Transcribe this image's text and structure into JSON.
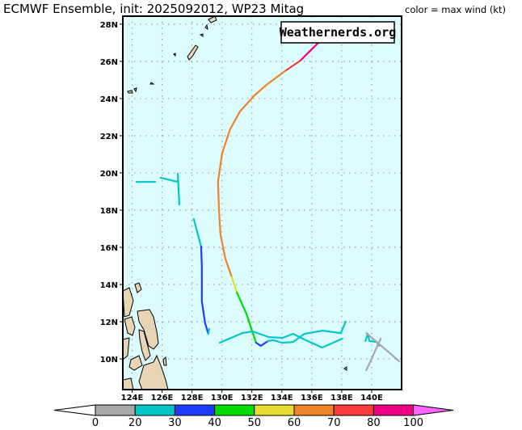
{
  "header": {
    "title": "ECMWF Ensemble, init: 2025092012, WP23 Mitag",
    "legend_note": "color = max wind (kt)"
  },
  "watermark": "Weathernerds.org",
  "map": {
    "lon_range": [
      123.38,
      142.0
    ],
    "lat_range": [
      8.35,
      28.43
    ],
    "lat_ticks": [
      {
        "v": 10,
        "label": "10N"
      },
      {
        "v": 12,
        "label": "12N"
      },
      {
        "v": 14,
        "label": "14N"
      },
      {
        "v": 16,
        "label": "16N"
      },
      {
        "v": 18,
        "label": "18N"
      },
      {
        "v": 20,
        "label": "20N"
      },
      {
        "v": 22,
        "label": "22N"
      },
      {
        "v": 24,
        "label": "24N"
      },
      {
        "v": 26,
        "label": "26N"
      },
      {
        "v": 28,
        "label": "28N"
      }
    ],
    "lon_ticks": [
      {
        "v": 124,
        "label": "124E"
      },
      {
        "v": 126,
        "label": "126E"
      },
      {
        "v": 128,
        "label": "128E"
      },
      {
        "v": 130,
        "label": "130E"
      },
      {
        "v": 132,
        "label": "132E"
      },
      {
        "v": 134,
        "label": "134E"
      },
      {
        "v": 136,
        "label": "136E"
      },
      {
        "v": 138,
        "label": "138E"
      },
      {
        "v": 140,
        "label": "140E"
      }
    ],
    "ocean_color": "#dcfcff",
    "land_color": "#e8d5b5"
  },
  "colorbar": {
    "bins": [
      {
        "from": 0,
        "to": 20,
        "color": "#a8a8a8"
      },
      {
        "from": 20,
        "to": 30,
        "color": "#00c8c8"
      },
      {
        "from": 30,
        "to": 40,
        "color": "#1e3cff"
      },
      {
        "from": 40,
        "to": 50,
        "color": "#00dc00"
      },
      {
        "from": 50,
        "to": 60,
        "color": "#e6dc32"
      },
      {
        "from": 60,
        "to": 70,
        "color": "#f08228"
      },
      {
        "from": 70,
        "to": 80,
        "color": "#fa3c3c"
      },
      {
        "from": 80,
        "to": 100,
        "color": "#f00082"
      }
    ],
    "over_color": "#ff64ff",
    "under_color": "#ffffff",
    "labels": [
      "0",
      "20",
      "30",
      "40",
      "50",
      "60",
      "70",
      "80",
      "100"
    ]
  },
  "tracks": [
    {
      "wind": 85,
      "points": [
        [
          136.7,
          27.2
        ],
        [
          135.94,
          26.61
        ],
        [
          135.24,
          26.04
        ]
      ]
    },
    {
      "wind": 75,
      "points": [
        [
          135.24,
          26.04
        ],
        [
          134.22,
          25.48
        ]
      ]
    },
    {
      "wind": 65,
      "points": [
        [
          134.22,
          25.48
        ],
        [
          132.98,
          24.74
        ],
        [
          132.17,
          24.17
        ],
        [
          131.2,
          23.3
        ],
        [
          130.55,
          22.35
        ],
        [
          130.01,
          21.04
        ],
        [
          129.74,
          19.52
        ],
        [
          129.8,
          18.0
        ],
        [
          129.9,
          16.7
        ],
        [
          130.23,
          15.39
        ],
        [
          130.66,
          14.39
        ]
      ]
    },
    {
      "wind": 55,
      "points": [
        [
          130.66,
          14.39
        ],
        [
          131.0,
          13.57
        ]
      ]
    },
    {
      "wind": 45,
      "points": [
        [
          131.0,
          13.57
        ],
        [
          131.63,
          12.43
        ],
        [
          132.28,
          10.87
        ]
      ]
    },
    {
      "wind": 35,
      "points": [
        [
          132.28,
          10.87
        ],
        [
          132.6,
          10.7
        ],
        [
          133.08,
          10.96
        ]
      ]
    },
    {
      "wind": 25,
      "points": [
        [
          133.08,
          10.96
        ],
        [
          133.46,
          11.0
        ],
        [
          134.0,
          10.87
        ],
        [
          134.75,
          10.91
        ],
        [
          135.51,
          11.35
        ],
        [
          136.75,
          11.52
        ],
        [
          137.94,
          11.39
        ],
        [
          138.26,
          12.0
        ]
      ]
    },
    {
      "wind": 25,
      "points": [
        [
          129.85,
          10.87
        ],
        [
          131.36,
          11.39
        ],
        [
          132.06,
          11.48
        ],
        [
          133.14,
          11.17
        ],
        [
          134.05,
          11.13
        ],
        [
          134.75,
          11.35
        ],
        [
          135.51,
          11.04
        ],
        [
          136.69,
          10.61
        ],
        [
          138.04,
          11.09
        ]
      ]
    },
    {
      "wind": 25,
      "points": [
        [
          139.58,
          10.96
        ],
        [
          139.74,
          11.35
        ],
        [
          139.85,
          10.96
        ],
        [
          140.34,
          10.91
        ],
        [
          140.5,
          10.7
        ]
      ]
    },
    {
      "wind": 15,
      "points": [
        [
          139.64,
          11.39
        ],
        [
          141.85,
          9.87
        ]
      ]
    },
    {
      "wind": 15,
      "points": [
        [
          140.61,
          11.09
        ],
        [
          139.64,
          9.39
        ]
      ]
    },
    {
      "wind": 25,
      "points": [
        [
          124.3,
          19.52
        ],
        [
          125.54,
          19.52
        ]
      ]
    },
    {
      "wind": 25,
      "points": [
        [
          125.91,
          19.74
        ],
        [
          127.05,
          19.52
        ]
      ]
    },
    {
      "wind": 25,
      "points": [
        [
          127.05,
          19.96
        ],
        [
          127.15,
          18.3
        ]
      ]
    },
    {
      "wind": 25,
      "points": [
        [
          128.12,
          17.52
        ],
        [
          128.61,
          16.04
        ]
      ]
    },
    {
      "wind": 35,
      "points": [
        [
          128.61,
          16.04
        ],
        [
          128.66,
          14.96
        ],
        [
          128.66,
          13.09
        ],
        [
          128.88,
          11.91
        ],
        [
          129.09,
          11.35
        ]
      ]
    },
    {
      "wind": 25,
      "points": [
        [
          129.09,
          11.35
        ],
        [
          129.15,
          11.61
        ]
      ]
    }
  ]
}
